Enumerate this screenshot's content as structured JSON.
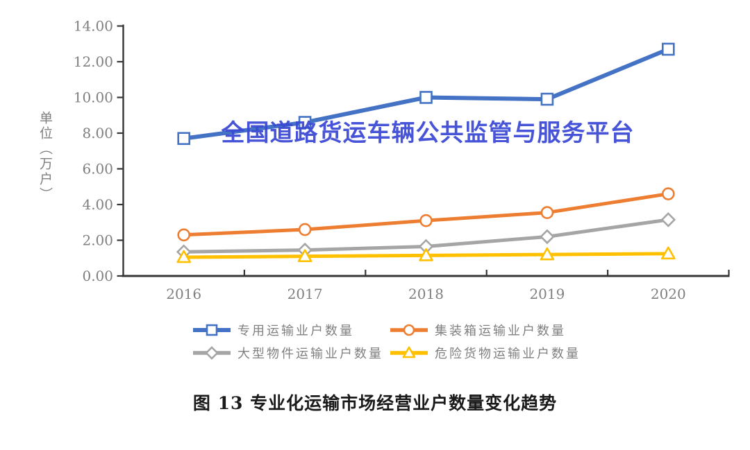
{
  "watermark": "全国道路货运车辆公共监管与服务平台",
  "caption": "图 13 专业化运输市场经营业户数量变化趋势",
  "chart_data": {
    "type": "line",
    "title": "",
    "categories": [
      "2016",
      "2017",
      "2018",
      "2019",
      "2020"
    ],
    "series": [
      {
        "name": "专用运输业户数量",
        "marker": "square",
        "color": "#4472C4",
        "values": [
          7.7,
          8.6,
          10.0,
          9.9,
          12.7
        ]
      },
      {
        "name": "集装箱运输业户数量",
        "marker": "circle",
        "color": "#ED7D31",
        "values": [
          2.3,
          2.6,
          3.1,
          3.55,
          4.6
        ]
      },
      {
        "name": "大型物件运输业户数量",
        "marker": "diamond",
        "color": "#A5A5A5",
        "values": [
          1.35,
          1.45,
          1.65,
          2.2,
          3.15
        ]
      },
      {
        "name": "危险货物运输业户数量",
        "marker": "triangle",
        "color": "#FFC000",
        "values": [
          1.05,
          1.1,
          1.15,
          1.2,
          1.25
        ]
      }
    ],
    "xlabel": "",
    "ylabel": "单位（万户）",
    "ylim": [
      0,
      14
    ],
    "ytick_step": 2,
    "ytick_format": "two-decimals",
    "grid": false,
    "legend_position": "bottom"
  },
  "colors": {
    "axis": "#363636",
    "tick_label": "#7F7F7F",
    "legend_text": "#808080",
    "watermark": "#3A48D4",
    "caption": "#1A1A1A",
    "marker_fill": "#FFFFFF",
    "background": "#FFFFFF"
  }
}
